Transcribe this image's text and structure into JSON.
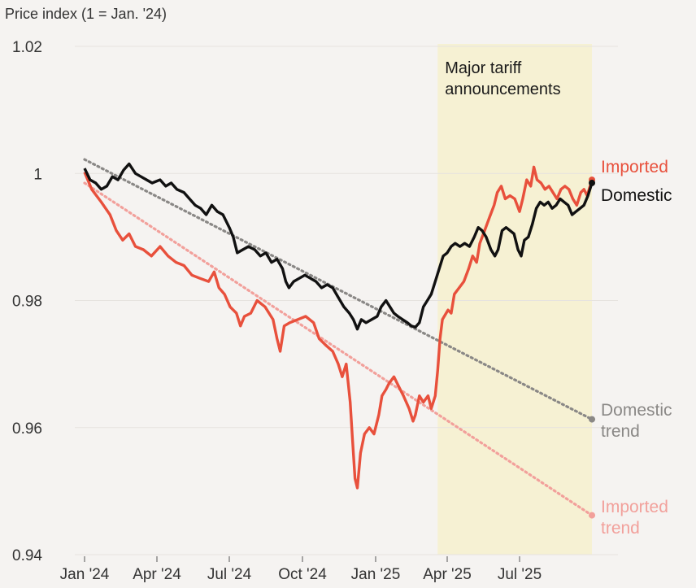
{
  "chart_data": {
    "type": "line",
    "ylabel": "Price index (1 = Jan. '24)",
    "ylim": [
      0.94,
      1.02
    ],
    "yticks": [
      {
        "value": 1.02,
        "label": "1.02"
      },
      {
        "value": 1.0,
        "label": "1"
      },
      {
        "value": 0.98,
        "label": "0.98"
      },
      {
        "value": 0.96,
        "label": "0.96"
      },
      {
        "value": 0.94,
        "label": "0.94"
      }
    ],
    "xlim": [
      "2024-01-01",
      "2025-10-01"
    ],
    "xticks": [
      {
        "date": "2024-01-01",
        "label": "Jan '24"
      },
      {
        "date": "2024-04-01",
        "label": "Apr '24"
      },
      {
        "date": "2024-07-01",
        "label": "Jul '24"
      },
      {
        "date": "2024-10-01",
        "label": "Oct '24"
      },
      {
        "date": "2025-01-01",
        "label": "Jan '25"
      },
      {
        "date": "2025-04-01",
        "label": "Apr '25"
      },
      {
        "date": "2025-07-01",
        "label": "Jul '25"
      }
    ],
    "grid": true,
    "shaded_region": {
      "start": "2025-03-20",
      "end": "2025-09-30",
      "label_lines": [
        "Major tariff",
        "announcements"
      ],
      "color": "#f6f1d3"
    },
    "series": [
      {
        "name": "Imported",
        "color": "#e8503c",
        "points": [
          [
            "2024-01-01",
            1.0002
          ],
          [
            "2024-01-10",
            0.9975
          ],
          [
            "2024-01-22",
            0.9955
          ],
          [
            "2024-02-02",
            0.9935
          ],
          [
            "2024-02-10",
            0.991
          ],
          [
            "2024-02-18",
            0.9895
          ],
          [
            "2024-02-26",
            0.9905
          ],
          [
            "2024-03-05",
            0.9885
          ],
          [
            "2024-03-15",
            0.988
          ],
          [
            "2024-03-25",
            0.987
          ],
          [
            "2024-04-05",
            0.9885
          ],
          [
            "2024-04-15",
            0.987
          ],
          [
            "2024-04-25",
            0.986
          ],
          [
            "2024-05-05",
            0.9855
          ],
          [
            "2024-05-15",
            0.984
          ],
          [
            "2024-05-25",
            0.9835
          ],
          [
            "2024-06-05",
            0.983
          ],
          [
            "2024-06-12",
            0.9845
          ],
          [
            "2024-06-18",
            0.982
          ],
          [
            "2024-06-25",
            0.981
          ],
          [
            "2024-07-02",
            0.979
          ],
          [
            "2024-07-10",
            0.978
          ],
          [
            "2024-07-15",
            0.976
          ],
          [
            "2024-07-20",
            0.9775
          ],
          [
            "2024-07-28",
            0.978
          ],
          [
            "2024-08-05",
            0.98
          ],
          [
            "2024-08-15",
            0.979
          ],
          [
            "2024-08-25",
            0.977
          ],
          [
            "2024-08-30",
            0.974
          ],
          [
            "2024-09-03",
            0.972
          ],
          [
            "2024-09-08",
            0.976
          ],
          [
            "2024-09-15",
            0.9765
          ],
          [
            "2024-09-25",
            0.977
          ],
          [
            "2024-10-05",
            0.9775
          ],
          [
            "2024-10-15",
            0.9765
          ],
          [
            "2024-10-22",
            0.974
          ],
          [
            "2024-10-30",
            0.973
          ],
          [
            "2024-11-08",
            0.972
          ],
          [
            "2024-11-15",
            0.97
          ],
          [
            "2024-11-20",
            0.968
          ],
          [
            "2024-11-25",
            0.97
          ],
          [
            "2024-11-30",
            0.964
          ],
          [
            "2024-12-03",
            0.958
          ],
          [
            "2024-12-06",
            0.952
          ],
          [
            "2024-12-09",
            0.9505
          ],
          [
            "2024-12-13",
            0.956
          ],
          [
            "2024-12-18",
            0.959
          ],
          [
            "2024-12-24",
            0.96
          ],
          [
            "2024-12-30",
            0.959
          ],
          [
            "2025-01-05",
            0.962
          ],
          [
            "2025-01-09",
            0.965
          ],
          [
            "2025-01-14",
            0.966
          ],
          [
            "2025-01-18",
            0.967
          ],
          [
            "2025-01-24",
            0.968
          ],
          [
            "2025-01-30",
            0.9665
          ],
          [
            "2025-02-05",
            0.965
          ],
          [
            "2025-02-12",
            0.963
          ],
          [
            "2025-02-17",
            0.961
          ],
          [
            "2025-02-20",
            0.962
          ],
          [
            "2025-02-25",
            0.965
          ],
          [
            "2025-03-02",
            0.964
          ],
          [
            "2025-03-08",
            0.965
          ],
          [
            "2025-03-12",
            0.963
          ],
          [
            "2025-03-17",
            0.965
          ],
          [
            "2025-03-20",
            0.969
          ],
          [
            "2025-03-23",
            0.974
          ],
          [
            "2025-03-26",
            0.977
          ],
          [
            "2025-04-02",
            0.9785
          ],
          [
            "2025-04-06",
            0.978
          ],
          [
            "2025-04-10",
            0.981
          ],
          [
            "2025-04-16",
            0.982
          ],
          [
            "2025-04-22",
            0.983
          ],
          [
            "2025-04-28",
            0.985
          ],
          [
            "2025-05-03",
            0.987
          ],
          [
            "2025-05-08",
            0.986
          ],
          [
            "2025-05-12",
            0.989
          ],
          [
            "2025-05-18",
            0.991
          ],
          [
            "2025-05-24",
            0.993
          ],
          [
            "2025-05-30",
            0.995
          ],
          [
            "2025-06-03",
            0.997
          ],
          [
            "2025-06-08",
            0.998
          ],
          [
            "2025-06-13",
            0.996
          ],
          [
            "2025-06-19",
            0.9965
          ],
          [
            "2025-06-25",
            0.996
          ],
          [
            "2025-07-01",
            0.994
          ],
          [
            "2025-07-05",
            0.996
          ],
          [
            "2025-07-10",
            0.999
          ],
          [
            "2025-07-15",
            0.998
          ],
          [
            "2025-07-19",
            1.001
          ],
          [
            "2025-07-23",
            0.999
          ],
          [
            "2025-07-28",
            0.9985
          ],
          [
            "2025-08-02",
            0.9975
          ],
          [
            "2025-08-07",
            0.998
          ],
          [
            "2025-08-12",
            0.997
          ],
          [
            "2025-08-17",
            0.996
          ],
          [
            "2025-08-22",
            0.9975
          ],
          [
            "2025-08-27",
            0.998
          ],
          [
            "2025-09-01",
            0.9975
          ],
          [
            "2025-09-06",
            0.996
          ],
          [
            "2025-09-11",
            0.995
          ],
          [
            "2025-09-16",
            0.997
          ],
          [
            "2025-09-20",
            0.9975
          ],
          [
            "2025-09-24",
            0.9965
          ],
          [
            "2025-09-30",
            0.999
          ]
        ]
      },
      {
        "name": "Domestic",
        "color": "#111111",
        "points": [
          [
            "2024-01-01",
            1.0008
          ],
          [
            "2024-01-08",
            0.999
          ],
          [
            "2024-01-15",
            0.9985
          ],
          [
            "2024-01-22",
            0.9975
          ],
          [
            "2024-01-29",
            0.998
          ],
          [
            "2024-02-05",
            0.9995
          ],
          [
            "2024-02-12",
            0.999
          ],
          [
            "2024-02-19",
            1.0005
          ],
          [
            "2024-02-26",
            1.0015
          ],
          [
            "2024-03-05",
            1.0
          ],
          [
            "2024-03-12",
            0.9995
          ],
          [
            "2024-03-19",
            0.999
          ],
          [
            "2024-03-26",
            0.9985
          ],
          [
            "2024-04-05",
            0.999
          ],
          [
            "2024-04-12",
            0.998
          ],
          [
            "2024-04-19",
            0.9985
          ],
          [
            "2024-04-26",
            0.9975
          ],
          [
            "2024-05-05",
            0.997
          ],
          [
            "2024-05-12",
            0.996
          ],
          [
            "2024-05-19",
            0.995
          ],
          [
            "2024-05-26",
            0.9945
          ],
          [
            "2024-06-02",
            0.9935
          ],
          [
            "2024-06-09",
            0.995
          ],
          [
            "2024-06-16",
            0.994
          ],
          [
            "2024-06-23",
            0.9935
          ],
          [
            "2024-07-01",
            0.9915
          ],
          [
            "2024-07-06",
            0.99
          ],
          [
            "2024-07-11",
            0.9875
          ],
          [
            "2024-07-18",
            0.988
          ],
          [
            "2024-07-25",
            0.9885
          ],
          [
            "2024-08-02",
            0.988
          ],
          [
            "2024-08-09",
            0.987
          ],
          [
            "2024-08-16",
            0.9875
          ],
          [
            "2024-08-23",
            0.986
          ],
          [
            "2024-08-30",
            0.9865
          ],
          [
            "2024-09-06",
            0.985
          ],
          [
            "2024-09-10",
            0.983
          ],
          [
            "2024-09-14",
            0.982
          ],
          [
            "2024-09-20",
            0.983
          ],
          [
            "2024-09-27",
            0.9835
          ],
          [
            "2024-10-04",
            0.984
          ],
          [
            "2024-10-11",
            0.9835
          ],
          [
            "2024-10-18",
            0.983
          ],
          [
            "2024-10-25",
            0.982
          ],
          [
            "2024-11-01",
            0.9825
          ],
          [
            "2024-11-08",
            0.982
          ],
          [
            "2024-11-15",
            0.9805
          ],
          [
            "2024-11-22",
            0.979
          ],
          [
            "2024-11-29",
            0.978
          ],
          [
            "2024-12-04",
            0.977
          ],
          [
            "2024-12-09",
            0.9755
          ],
          [
            "2024-12-14",
            0.977
          ],
          [
            "2024-12-20",
            0.9765
          ],
          [
            "2024-12-27",
            0.977
          ],
          [
            "2025-01-03",
            0.9775
          ],
          [
            "2025-01-08",
            0.979
          ],
          [
            "2025-01-14",
            0.98
          ],
          [
            "2025-01-19",
            0.979
          ],
          [
            "2025-01-24",
            0.978
          ],
          [
            "2025-01-29",
            0.9775
          ],
          [
            "2025-02-04",
            0.977
          ],
          [
            "2025-02-10",
            0.9765
          ],
          [
            "2025-02-15",
            0.976
          ],
          [
            "2025-02-20",
            0.9758
          ],
          [
            "2025-02-25",
            0.9765
          ],
          [
            "2025-03-02",
            0.979
          ],
          [
            "2025-03-07",
            0.98
          ],
          [
            "2025-03-12",
            0.981
          ],
          [
            "2025-03-17",
            0.983
          ],
          [
            "2025-03-22",
            0.985
          ],
          [
            "2025-03-27",
            0.987
          ],
          [
            "2025-04-01",
            0.9875
          ],
          [
            "2025-04-06",
            0.9885
          ],
          [
            "2025-04-11",
            0.989
          ],
          [
            "2025-04-17",
            0.9885
          ],
          [
            "2025-04-23",
            0.989
          ],
          [
            "2025-04-29",
            0.9885
          ],
          [
            "2025-05-05",
            0.99
          ],
          [
            "2025-05-10",
            0.9915
          ],
          [
            "2025-05-15",
            0.991
          ],
          [
            "2025-05-20",
            0.99
          ],
          [
            "2025-05-26",
            0.988
          ],
          [
            "2025-05-31",
            0.987
          ],
          [
            "2025-06-04",
            0.988
          ],
          [
            "2025-06-09",
            0.991
          ],
          [
            "2025-06-14",
            0.9915
          ],
          [
            "2025-06-19",
            0.991
          ],
          [
            "2025-06-24",
            0.9905
          ],
          [
            "2025-06-29",
            0.988
          ],
          [
            "2025-07-03",
            0.987
          ],
          [
            "2025-07-07",
            0.9895
          ],
          [
            "2025-07-12",
            0.99
          ],
          [
            "2025-07-17",
            0.992
          ],
          [
            "2025-07-22",
            0.9945
          ],
          [
            "2025-07-27",
            0.9955
          ],
          [
            "2025-08-01",
            0.995
          ],
          [
            "2025-08-06",
            0.9955
          ],
          [
            "2025-08-11",
            0.9945
          ],
          [
            "2025-08-16",
            0.995
          ],
          [
            "2025-08-21",
            0.996
          ],
          [
            "2025-08-26",
            0.9955
          ],
          [
            "2025-08-31",
            0.995
          ],
          [
            "2025-09-05",
            0.9935
          ],
          [
            "2025-09-10",
            0.994
          ],
          [
            "2025-09-15",
            0.9945
          ],
          [
            "2025-09-20",
            0.995
          ],
          [
            "2025-09-25",
            0.9965
          ],
          [
            "2025-09-30",
            0.9985
          ]
        ]
      },
      {
        "name": "Domestic trend",
        "color": "#8a8886",
        "dotted": true,
        "points": [
          [
            "2024-01-01",
            1.0022
          ],
          [
            "2025-09-30",
            0.9613
          ]
        ]
      },
      {
        "name": "Imported trend",
        "color": "#f2a09b",
        "dotted": true,
        "points": [
          [
            "2024-01-01",
            0.9985
          ],
          [
            "2025-09-30",
            0.9462
          ]
        ]
      }
    ],
    "labels": {
      "imported": "Imported",
      "domestic": "Domestic",
      "domestic_trend_lines": [
        "Domestic",
        "trend"
      ],
      "imported_trend_lines": [
        "Imported",
        "trend"
      ]
    },
    "colors": {
      "background": "#f5f3f1",
      "grid": "#e6e3df",
      "imported": "#e8503c",
      "domestic": "#111111",
      "domestic_trend": "#8a8886",
      "imported_trend": "#f2a09b",
      "shade": "#f6f1d3"
    }
  }
}
